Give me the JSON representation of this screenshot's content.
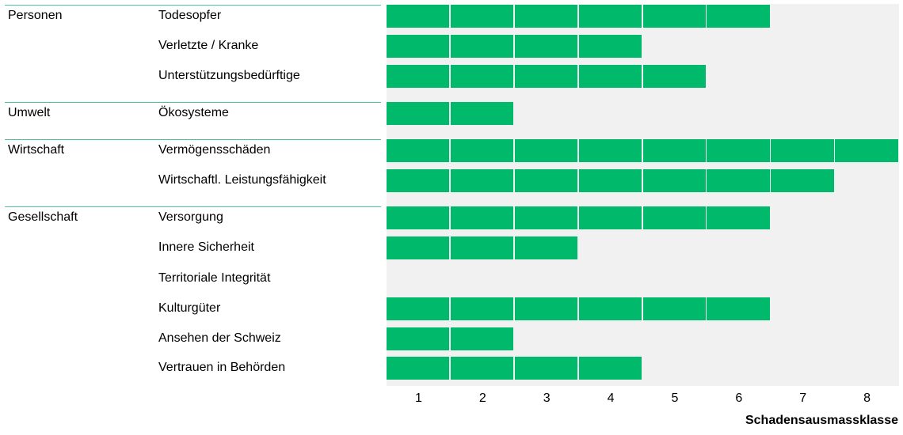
{
  "chart_data": {
    "type": "bar",
    "orientation": "horizontal",
    "xlabel": "Schadensausmassklasse",
    "xlim": [
      0.5,
      8.5
    ],
    "x_ticks": [
      "1",
      "2",
      "3",
      "4",
      "5",
      "6",
      "7",
      "8"
    ],
    "colors": {
      "bar": "#00b96b",
      "plot_background": "#f1f1f1",
      "group_line": "#4cc49a"
    },
    "groups": [
      {
        "name": "Personen",
        "items": [
          {
            "label": "Todesopfer",
            "value": 6
          },
          {
            "label": "Verletzte / Kranke",
            "value": 4
          },
          {
            "label": "Unterstützungsbedürftige",
            "value": 5
          }
        ]
      },
      {
        "name": "Umwelt",
        "items": [
          {
            "label": "Ökosysteme",
            "value": 2
          }
        ]
      },
      {
        "name": "Wirtschaft",
        "items": [
          {
            "label": "Vermögensschäden",
            "value": 8
          },
          {
            "label": "Wirtschaftl. Leistungsfähigkeit",
            "value": 7
          }
        ]
      },
      {
        "name": "Gesellschaft",
        "items": [
          {
            "label": "Versorgung",
            "value": 6
          },
          {
            "label": "Innere Sicherheit",
            "value": 3
          },
          {
            "label": "Territoriale Integrität",
            "value": 0
          },
          {
            "label": "Kulturgüter",
            "value": 6
          },
          {
            "label": "Ansehen der Schweiz",
            "value": 2
          },
          {
            "label": "Vertrauen in Behörden",
            "value": 4
          }
        ]
      }
    ]
  }
}
